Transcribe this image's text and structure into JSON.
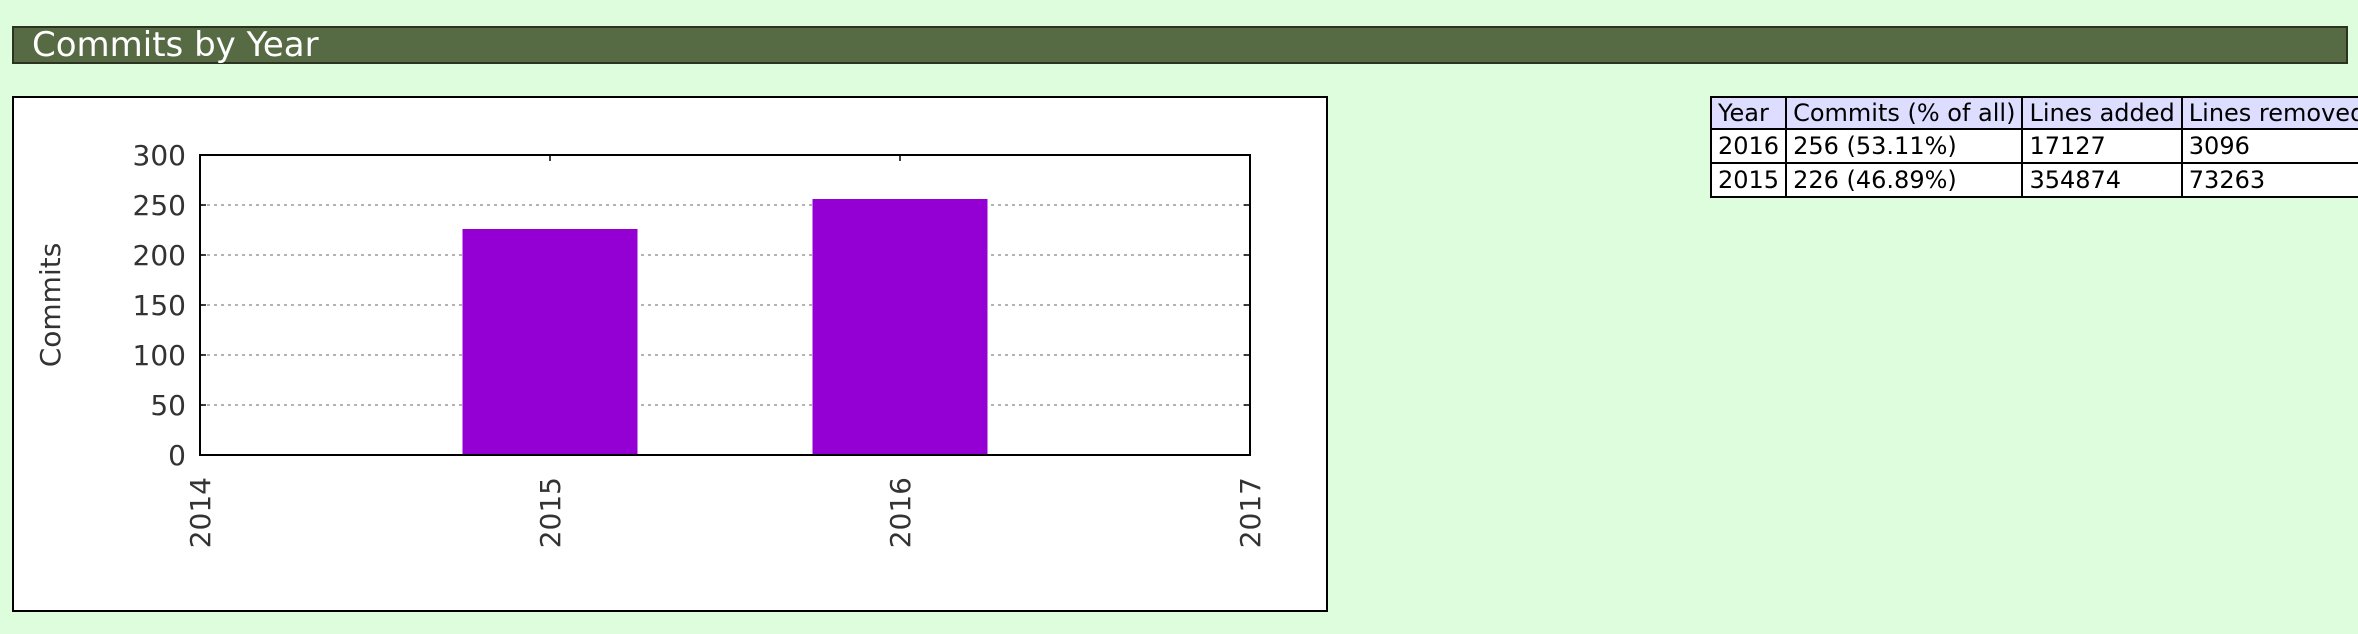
{
  "header": {
    "title": "Commits by Year"
  },
  "chart_data": {
    "type": "bar",
    "title": "",
    "xlabel": "",
    "ylabel": "Commits",
    "x_ticks": [
      "2014",
      "2015",
      "2016",
      "2017"
    ],
    "xlim": [
      2014,
      2017
    ],
    "ylim": [
      0,
      300
    ],
    "y_ticks": [
      "0",
      "50",
      "100",
      "150",
      "200",
      "250",
      "300"
    ],
    "y_tick_values": [
      0,
      50,
      100,
      150,
      200,
      250,
      300
    ],
    "grid": true,
    "legend": "none",
    "bar_color": "#9400d3",
    "categories": [
      "2015",
      "2016"
    ],
    "x": [
      2015,
      2016
    ],
    "values": [
      226,
      256
    ]
  },
  "table": {
    "headers": [
      "Year",
      "Commits (% of all)",
      "Lines added",
      "Lines removed"
    ],
    "rows": [
      [
        "2016",
        "256 (53.11%)",
        "17127",
        "3096"
      ],
      [
        "2015",
        "226 (46.89%)",
        "354874",
        "73263"
      ]
    ]
  }
}
